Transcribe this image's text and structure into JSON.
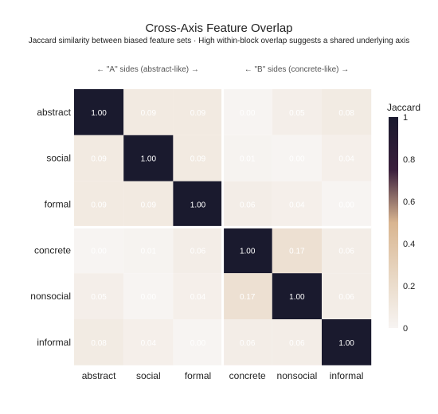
{
  "title": "Cross-Axis Feature Overlap",
  "subtitle": "Jaccard similarity between biased feature sets · High within-block overlap suggests a shared underlying axis",
  "group_labels": {
    "a": "← \"A\" sides (abstract-like) →",
    "b": "← \"B\" sides (concrete-like) →"
  },
  "chart_data": {
    "type": "heatmap",
    "x": [
      "abstract",
      "social",
      "formal",
      "concrete",
      "nonsocial",
      "informal"
    ],
    "y": [
      "abstract",
      "social",
      "formal",
      "concrete",
      "nonsocial",
      "informal"
    ],
    "z": [
      [
        1.0,
        0.09,
        0.09,
        0.0,
        0.05,
        0.08
      ],
      [
        0.09,
        1.0,
        0.09,
        0.01,
        0.0,
        0.04
      ],
      [
        0.09,
        0.09,
        1.0,
        0.06,
        0.04,
        0.0
      ],
      [
        0.0,
        0.01,
        0.06,
        1.0,
        0.17,
        0.06
      ],
      [
        0.05,
        0.0,
        0.04,
        0.17,
        1.0,
        0.06
      ],
      [
        0.08,
        0.04,
        0.0,
        0.06,
        0.06,
        1.0
      ]
    ],
    "colorbar": {
      "title": "Jaccard",
      "range": [
        0,
        1
      ],
      "ticks": [
        "0",
        "0.2",
        "0.4",
        "0.6",
        "0.8",
        "1"
      ]
    },
    "colorscale": [
      "#f7f4f2",
      "#e8d7c3",
      "#d9b590",
      "#3a1f3c",
      "#1a1a2e"
    ]
  }
}
